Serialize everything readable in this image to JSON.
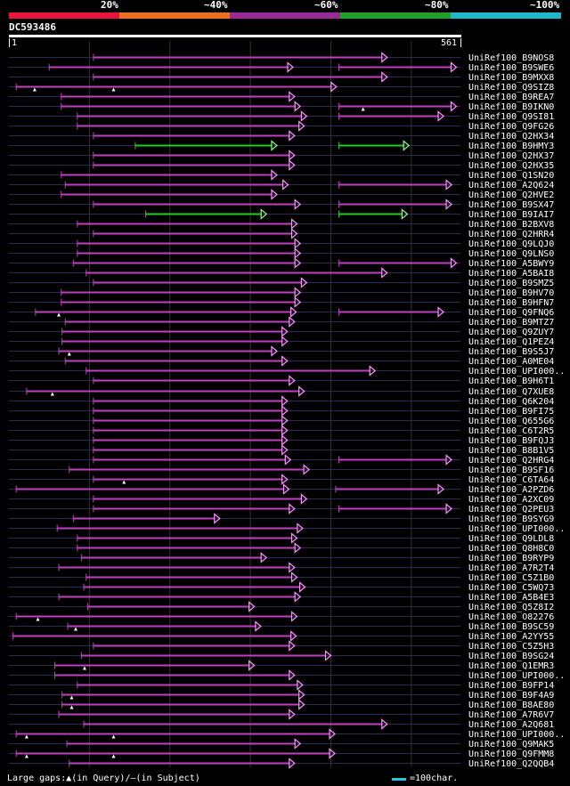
{
  "legend": {
    "segments": [
      {
        "label": "20%",
        "color": "#e8143c"
      },
      {
        "label": "~40%",
        "color": "#e8701e"
      },
      {
        "label": "~60%",
        "color": "#9a2a96"
      },
      {
        "label": "~80%",
        "color": "#20a028"
      },
      {
        "label": "~100%",
        "color": "#1eb8c8"
      }
    ]
  },
  "query": {
    "id": "DC593486",
    "start_label": "1",
    "end_label": "561",
    "length": 561
  },
  "colors": {
    "magenta": "#c040c0",
    "arrow": "#ff90ff",
    "green": "#22cc22",
    "green_arrow": "#88ff88",
    "connector": "#2a2a55",
    "grid": "#333333"
  },
  "chart_data": {
    "type": "alignment",
    "title": "DC593486",
    "x_range": [
      1,
      561
    ],
    "gridlines": [
      100,
      200,
      300,
      400,
      500
    ],
    "hits": [
      {
        "id": "UniRef100_B9NOS8",
        "segs": [
          [
            105,
            470,
            "m"
          ]
        ],
        "marks": []
      },
      {
        "id": "UniRef100_B9SWE6",
        "segs": [
          [
            50,
            353,
            "m"
          ],
          [
            410,
            556,
            "m"
          ]
        ],
        "marks": []
      },
      {
        "id": "UniRef100_B9MXX8",
        "segs": [
          [
            105,
            470,
            "m"
          ]
        ],
        "marks": []
      },
      {
        "id": "UniRef100_Q9SIZ8",
        "segs": [
          [
            9,
            407,
            "m"
          ]
        ],
        "marks": [
          32,
          130
        ]
      },
      {
        "id": "UniRef100_B9REA7",
        "segs": [
          [
            65,
            355,
            "m"
          ]
        ],
        "marks": []
      },
      {
        "id": "UniRef100_B9IKN0",
        "segs": [
          [
            65,
            362,
            "m"
          ],
          [
            410,
            556,
            "m"
          ]
        ],
        "marks": [
          440
        ]
      },
      {
        "id": "UniRef100_Q9SI81",
        "segs": [
          [
            85,
            370,
            "m"
          ],
          [
            410,
            540,
            "m"
          ]
        ],
        "marks": []
      },
      {
        "id": "UniRef100_Q9FG26",
        "segs": [
          [
            85,
            367,
            "m"
          ]
        ],
        "marks": []
      },
      {
        "id": "UniRef100_Q2HX34",
        "segs": [
          [
            105,
            355,
            "m"
          ]
        ],
        "marks": []
      },
      {
        "id": "UniRef100_B9HMY3",
        "segs": [
          [
            157,
            333,
            "g"
          ],
          [
            410,
            497,
            "g"
          ]
        ],
        "marks": []
      },
      {
        "id": "UniRef100_Q2HX37",
        "segs": [
          [
            105,
            355,
            "m"
          ]
        ],
        "marks": []
      },
      {
        "id": "UniRef100_Q2HX35",
        "segs": [
          [
            105,
            355,
            "m"
          ]
        ],
        "marks": []
      },
      {
        "id": "UniRef100_Q1SN20",
        "segs": [
          [
            65,
            333,
            "m"
          ]
        ],
        "marks": []
      },
      {
        "id": "UniRef100_A2Q624",
        "segs": [
          [
            70,
            347,
            "m"
          ],
          [
            410,
            550,
            "m"
          ]
        ],
        "marks": []
      },
      {
        "id": "UniRef100_Q2HVE2",
        "segs": [
          [
            65,
            333,
            "m"
          ]
        ],
        "marks": []
      },
      {
        "id": "UniRef100_B9SX47",
        "segs": [
          [
            105,
            362,
            "m"
          ],
          [
            410,
            550,
            "m"
          ]
        ],
        "marks": []
      },
      {
        "id": "UniRef100_B9IAI7",
        "segs": [
          [
            170,
            320,
            "g"
          ],
          [
            410,
            495,
            "g"
          ]
        ],
        "marks": []
      },
      {
        "id": "UniRef100_B2BXV8",
        "segs": [
          [
            85,
            358,
            "m"
          ]
        ],
        "marks": []
      },
      {
        "id": "UniRef100_Q2HRR4",
        "segs": [
          [
            105,
            358,
            "m"
          ]
        ],
        "marks": []
      },
      {
        "id": "UniRef100_Q9LQJ0",
        "segs": [
          [
            85,
            362,
            "m"
          ]
        ],
        "marks": []
      },
      {
        "id": "UniRef100_Q9LNS0",
        "segs": [
          [
            85,
            362,
            "m"
          ]
        ],
        "marks": []
      },
      {
        "id": "UniRef100_A5BWY9",
        "segs": [
          [
            80,
            362,
            "m"
          ],
          [
            410,
            556,
            "m"
          ]
        ],
        "marks": []
      },
      {
        "id": "UniRef100_A5BAI8",
        "segs": [
          [
            96,
            470,
            "m"
          ]
        ],
        "marks": []
      },
      {
        "id": "UniRef100_B9SMZ5",
        "segs": [
          [
            105,
            370,
            "m"
          ]
        ],
        "marks": []
      },
      {
        "id": "UniRef100_B9HV70",
        "segs": [
          [
            65,
            362,
            "m"
          ]
        ],
        "marks": []
      },
      {
        "id": "UniRef100_B9HFN7",
        "segs": [
          [
            65,
            362,
            "m"
          ]
        ],
        "marks": []
      },
      {
        "id": "UniRef100_Q9FNQ6",
        "segs": [
          [
            33,
            357,
            "m"
          ],
          [
            410,
            540,
            "m"
          ]
        ],
        "marks": [
          62
        ]
      },
      {
        "id": "UniRef100_B9MTZ7",
        "segs": [
          [
            70,
            355,
            "m"
          ]
        ],
        "marks": []
      },
      {
        "id": "UniRef100_Q9ZUY7",
        "segs": [
          [
            66,
            346,
            "m"
          ]
        ],
        "marks": []
      },
      {
        "id": "UniRef100_Q1PEZ4",
        "segs": [
          [
            66,
            346,
            "m"
          ]
        ],
        "marks": []
      },
      {
        "id": "UniRef100_B9S5J7",
        "segs": [
          [
            62,
            333,
            "m"
          ]
        ],
        "marks": [
          75
        ]
      },
      {
        "id": "UniRef100_A0ME04",
        "segs": [
          [
            70,
            346,
            "m"
          ]
        ],
        "marks": []
      },
      {
        "id": "UniRef100_UPI000..",
        "segs": [
          [
            96,
            455,
            "m"
          ]
        ],
        "marks": []
      },
      {
        "id": "UniRef100_B9H6T1",
        "segs": [
          [
            105,
            355,
            "m"
          ]
        ],
        "marks": []
      },
      {
        "id": "UniRef100_Q7XUE8",
        "segs": [
          [
            22,
            367,
            "m"
          ]
        ],
        "marks": [
          54
        ]
      },
      {
        "id": "UniRef100_Q6K204",
        "segs": [
          [
            105,
            346,
            "m"
          ]
        ],
        "marks": []
      },
      {
        "id": "UniRef100_B9FI75",
        "segs": [
          [
            105,
            346,
            "m"
          ]
        ],
        "marks": []
      },
      {
        "id": "UniRef100_Q655G6",
        "segs": [
          [
            105,
            346,
            "m"
          ]
        ],
        "marks": []
      },
      {
        "id": "UniRef100_C6T2R5",
        "segs": [
          [
            105,
            346,
            "m"
          ]
        ],
        "marks": []
      },
      {
        "id": "UniRef100_B9FQJ3",
        "segs": [
          [
            105,
            346,
            "m"
          ]
        ],
        "marks": []
      },
      {
        "id": "UniRef100_B8B1V5",
        "segs": [
          [
            105,
            346,
            "m"
          ]
        ],
        "marks": []
      },
      {
        "id": "UniRef100_Q2HRG4",
        "segs": [
          [
            105,
            350,
            "m"
          ],
          [
            410,
            550,
            "m"
          ]
        ],
        "marks": []
      },
      {
        "id": "UniRef100_B9SF16",
        "segs": [
          [
            75,
            373,
            "m"
          ]
        ],
        "marks": []
      },
      {
        "id": "UniRef100_C6TA64",
        "segs": [
          [
            105,
            346,
            "m"
          ]
        ],
        "marks": [
          143
        ]
      },
      {
        "id": "UniRef100_A2PZD6",
        "segs": [
          [
            9,
            348,
            "m"
          ],
          [
            406,
            540,
            "m"
          ]
        ],
        "marks": []
      },
      {
        "id": "UniRef100_A2XC09",
        "segs": [
          [
            105,
            370,
            "m"
          ]
        ],
        "marks": []
      },
      {
        "id": "UniRef100_Q2PEU3",
        "segs": [
          [
            105,
            355,
            "m"
          ],
          [
            410,
            550,
            "m"
          ]
        ],
        "marks": []
      },
      {
        "id": "UniRef100_B9SYG9",
        "segs": [
          [
            80,
            262,
            "m"
          ]
        ],
        "marks": []
      },
      {
        "id": "UniRef100_UPI000..",
        "segs": [
          [
            60,
            365,
            "m"
          ]
        ],
        "marks": []
      },
      {
        "id": "UniRef100_Q9LDL8",
        "segs": [
          [
            85,
            358,
            "m"
          ]
        ],
        "marks": []
      },
      {
        "id": "UniRef100_Q8H8C0",
        "segs": [
          [
            85,
            362,
            "m"
          ]
        ],
        "marks": []
      },
      {
        "id": "UniRef100_B9RYP9",
        "segs": [
          [
            90,
            320,
            "m"
          ]
        ],
        "marks": []
      },
      {
        "id": "UniRef100_A7R2T4",
        "segs": [
          [
            62,
            355,
            "m"
          ]
        ],
        "marks": []
      },
      {
        "id": "UniRef100_C5Z1B0",
        "segs": [
          [
            96,
            358,
            "m"
          ]
        ],
        "marks": []
      },
      {
        "id": "UniRef100_C5WQ73",
        "segs": [
          [
            93,
            368,
            "m"
          ]
        ],
        "marks": []
      },
      {
        "id": "UniRef100_A5B4E3",
        "segs": [
          [
            62,
            362,
            "m"
          ]
        ],
        "marks": []
      },
      {
        "id": "UniRef100_Q5Z8I2",
        "segs": [
          [
            98,
            305,
            "m"
          ]
        ],
        "marks": []
      },
      {
        "id": "UniRef100_O82276",
        "segs": [
          [
            9,
            358,
            "m"
          ]
        ],
        "marks": [
          36
        ]
      },
      {
        "id": "UniRef100_B9SC59",
        "segs": [
          [
            73,
            313,
            "m"
          ]
        ],
        "marks": [
          83
        ]
      },
      {
        "id": "UniRef100_A2YY55",
        "segs": [
          [
            5,
            357,
            "m"
          ]
        ],
        "marks": []
      },
      {
        "id": "UniRef100_C5Z5H3",
        "segs": [
          [
            105,
            355,
            "m"
          ]
        ],
        "marks": []
      },
      {
        "id": "UniRef100_B9SG24",
        "segs": [
          [
            90,
            400,
            "m"
          ]
        ],
        "marks": []
      },
      {
        "id": "UniRef100_Q1EMR3",
        "segs": [
          [
            57,
            305,
            "m"
          ]
        ],
        "marks": [
          94
        ]
      },
      {
        "id": "UniRef100_UPI000..",
        "segs": [
          [
            57,
            355,
            "m"
          ]
        ],
        "marks": []
      },
      {
        "id": "UniRef100_B9FP14",
        "segs": [
          [
            85,
            365,
            "m"
          ]
        ],
        "marks": []
      },
      {
        "id": "UniRef100_B9F4A9",
        "segs": [
          [
            66,
            367,
            "m"
          ]
        ],
        "marks": [
          78
        ]
      },
      {
        "id": "UniRef100_B8AE80",
        "segs": [
          [
            66,
            367,
            "m"
          ]
        ],
        "marks": [
          78
        ]
      },
      {
        "id": "UniRef100_A7R6V7",
        "segs": [
          [
            62,
            355,
            "m"
          ]
        ],
        "marks": []
      },
      {
        "id": "UniRef100_A2Q681",
        "segs": [
          [
            93,
            470,
            "m"
          ]
        ],
        "marks": []
      },
      {
        "id": "UniRef100_UPI000..",
        "segs": [
          [
            9,
            405,
            "m"
          ]
        ],
        "marks": [
          22,
          130
        ]
      },
      {
        "id": "UniRef100_Q9MAK5",
        "segs": [
          [
            72,
            362,
            "m"
          ]
        ],
        "marks": []
      },
      {
        "id": "UniRef100_Q9FMM8",
        "segs": [
          [
            9,
            405,
            "m"
          ]
        ],
        "marks": [
          22,
          130
        ]
      },
      {
        "id": "UniRef100_Q2QQB4",
        "segs": [
          [
            75,
            355,
            "m"
          ]
        ],
        "marks": []
      }
    ]
  },
  "footer": {
    "gap_legend": "Large gaps:▲(in Query)/—(in Subject)",
    "scale_label": "=100char."
  }
}
